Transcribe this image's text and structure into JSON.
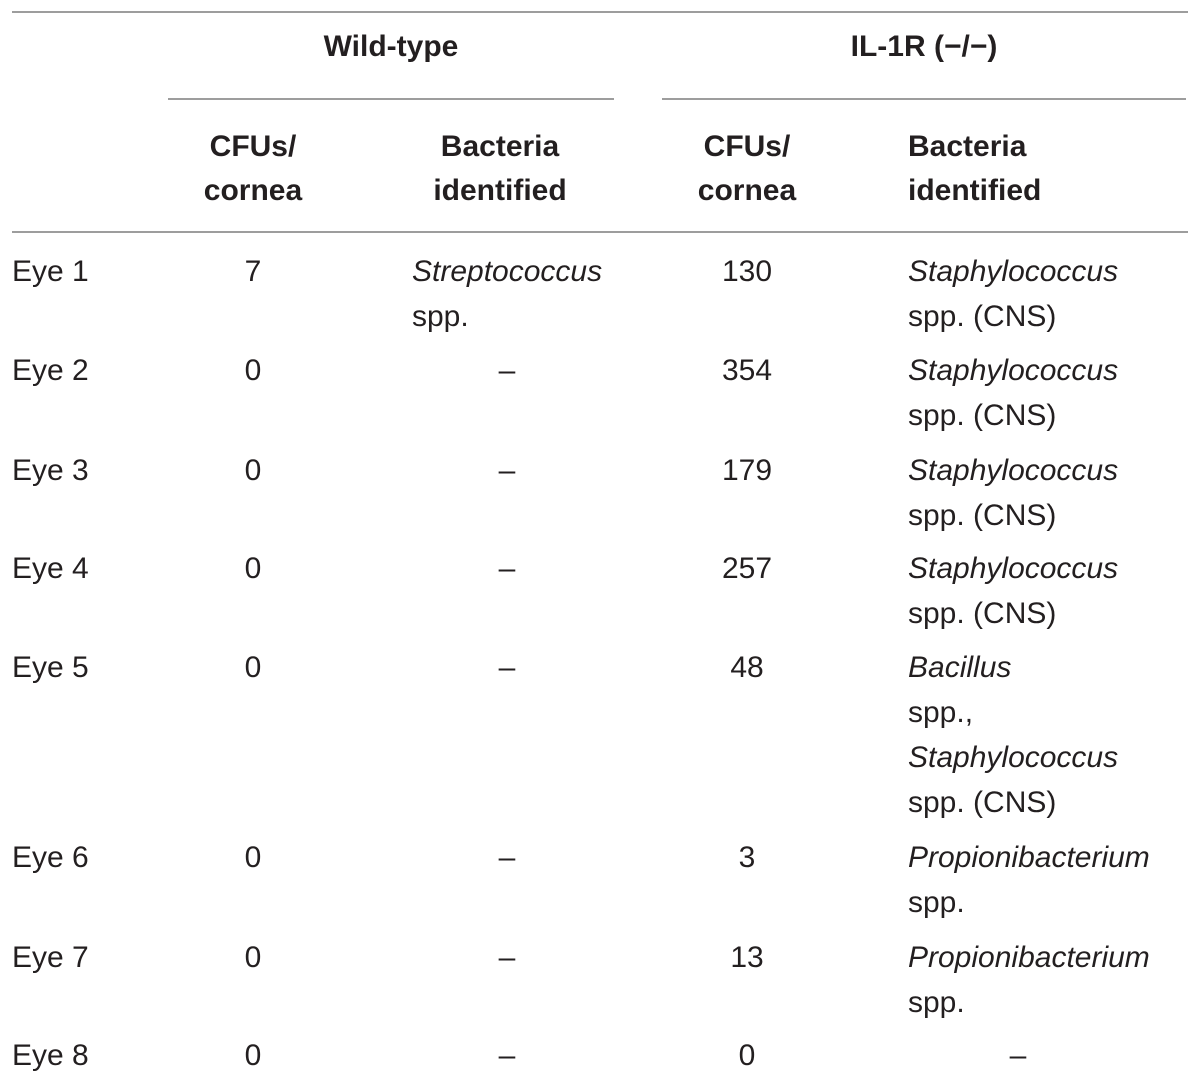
{
  "table": {
    "groups": [
      {
        "label": "Wild-type"
      },
      {
        "label": "IL-1R (−/−)"
      }
    ],
    "column_headers": {
      "wt_cfu": [
        "CFUs/",
        "cornea"
      ],
      "wt_bacteria": [
        "Bacteria",
        "identified"
      ],
      "ko_cfu": [
        "CFUs/",
        "cornea"
      ],
      "ko_bacteria": [
        "Bacteria",
        "identified"
      ]
    },
    "rows": [
      {
        "eye": "Eye 1",
        "wt_cfu": "7",
        "wt_bacteria": [
          {
            "text": "Streptococcus",
            "italic": true
          },
          {
            "text": "spp.",
            "italic": false
          }
        ],
        "ko_cfu": "130",
        "ko_bacteria": [
          {
            "text": "Staphylococcus",
            "italic": true
          },
          {
            "text": "spp. (CNS)",
            "italic": false
          }
        ]
      },
      {
        "eye": "Eye 2",
        "wt_cfu": "0",
        "wt_bacteria": [
          {
            "text": "–",
            "italic": false
          }
        ],
        "ko_cfu": "354",
        "ko_bacteria": [
          {
            "text": "Staphylococcus",
            "italic": true
          },
          {
            "text": "spp. (CNS)",
            "italic": false
          }
        ]
      },
      {
        "eye": "Eye 3",
        "wt_cfu": "0",
        "wt_bacteria": [
          {
            "text": "–",
            "italic": false
          }
        ],
        "ko_cfu": "179",
        "ko_bacteria": [
          {
            "text": "Staphylococcus",
            "italic": true
          },
          {
            "text": "spp. (CNS)",
            "italic": false
          }
        ]
      },
      {
        "eye": "Eye 4",
        "wt_cfu": "0",
        "wt_bacteria": [
          {
            "text": "–",
            "italic": false
          }
        ],
        "ko_cfu": "257",
        "ko_bacteria": [
          {
            "text": "Staphylococcus",
            "italic": true
          },
          {
            "text": "spp. (CNS)",
            "italic": false
          }
        ]
      },
      {
        "eye": "Eye 5",
        "wt_cfu": "0",
        "wt_bacteria": [
          {
            "text": "–",
            "italic": false
          }
        ],
        "ko_cfu": "48",
        "ko_bacteria": [
          {
            "text": "Bacillus",
            "italic": true
          },
          {
            "text": "spp.,",
            "italic": false
          },
          {
            "text": "Staphylococcus",
            "italic": true
          },
          {
            "text": "spp. (CNS)",
            "italic": false
          }
        ]
      },
      {
        "eye": "Eye 6",
        "wt_cfu": "0",
        "wt_bacteria": [
          {
            "text": "–",
            "italic": false
          }
        ],
        "ko_cfu": "3",
        "ko_bacteria": [
          {
            "text": "Propionibacterium",
            "italic": true
          },
          {
            "text": "spp.",
            "italic": false
          }
        ]
      },
      {
        "eye": "Eye 7",
        "wt_cfu": "0",
        "wt_bacteria": [
          {
            "text": "–",
            "italic": false
          }
        ],
        "ko_cfu": "13",
        "ko_bacteria": [
          {
            "text": "Propionibacterium",
            "italic": true
          },
          {
            "text": "spp.",
            "italic": false
          }
        ]
      },
      {
        "eye": "Eye 8",
        "wt_cfu": "0",
        "wt_bacteria": [
          {
            "text": "–",
            "italic": false
          }
        ],
        "ko_cfu": "0",
        "ko_bacteria": [
          {
            "text": "–",
            "italic": false
          }
        ]
      }
    ]
  }
}
